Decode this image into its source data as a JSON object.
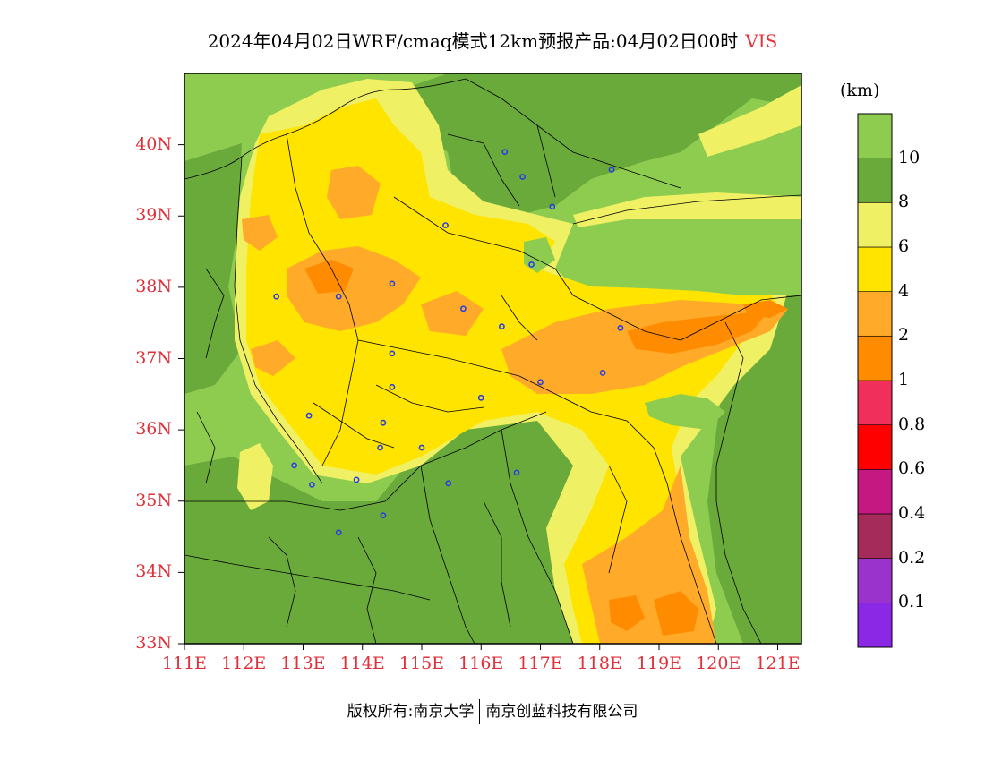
{
  "title": {
    "text": "2024年04月02日WRF/cmaq模式12km预报产品:04月02日00时",
    "variable": "VIS",
    "variable_color": "#e8303c"
  },
  "map": {
    "lat_labels": [
      "40N",
      "39N",
      "38N",
      "37N",
      "36N",
      "35N",
      "34N",
      "33N"
    ],
    "lon_labels": [
      "111E",
      "112E",
      "113E",
      "114E",
      "115E",
      "116E",
      "117E",
      "118E",
      "119E",
      "120E",
      "121E"
    ],
    "extent": {
      "lon_min": 111,
      "lon_max": 121.4,
      "lat_min": 33,
      "lat_max": 41
    },
    "label_color": "#e0303a",
    "stations": [
      [
        116.4,
        39.9
      ],
      [
        116.7,
        39.55
      ],
      [
        117.2,
        39.13
      ],
      [
        118.2,
        39.65
      ],
      [
        114.5,
        38.05
      ],
      [
        113.6,
        37.87
      ],
      [
        112.55,
        37.87
      ],
      [
        115.7,
        37.7
      ],
      [
        116.35,
        37.45
      ],
      [
        116.85,
        38.32
      ],
      [
        115.4,
        38.87
      ],
      [
        114.5,
        37.07
      ],
      [
        114.5,
        36.6
      ],
      [
        113.1,
        36.2
      ],
      [
        114.35,
        36.1
      ],
      [
        114.3,
        35.75
      ],
      [
        113.9,
        35.3
      ],
      [
        115.0,
        35.75
      ],
      [
        115.45,
        35.25
      ],
      [
        116.6,
        35.4
      ],
      [
        117.0,
        36.67
      ],
      [
        118.05,
        36.8
      ],
      [
        118.35,
        37.43
      ],
      [
        116.0,
        36.45
      ],
      [
        112.85,
        35.5
      ],
      [
        113.15,
        35.23
      ],
      [
        114.35,
        34.8
      ],
      [
        113.6,
        34.56
      ]
    ]
  },
  "colorbar": {
    "unit": "(km)",
    "colors": [
      "#8a28e6",
      "#9933cc",
      "#a52c5a",
      "#c51880",
      "#ff0000",
      "#f0305a",
      "#ff8c00",
      "#ffaa28",
      "#ffe400",
      "#f0f064",
      "#6aaa3a",
      "#8ecc50"
    ],
    "labels": [
      "0.1",
      "0.2",
      "0.4",
      "0.6",
      "0.8",
      "1",
      "2",
      "4",
      "6",
      "8",
      "10"
    ]
  },
  "copyright": {
    "left": "版权所有:南京大学",
    "right": "南京创蓝科技有限公司"
  }
}
